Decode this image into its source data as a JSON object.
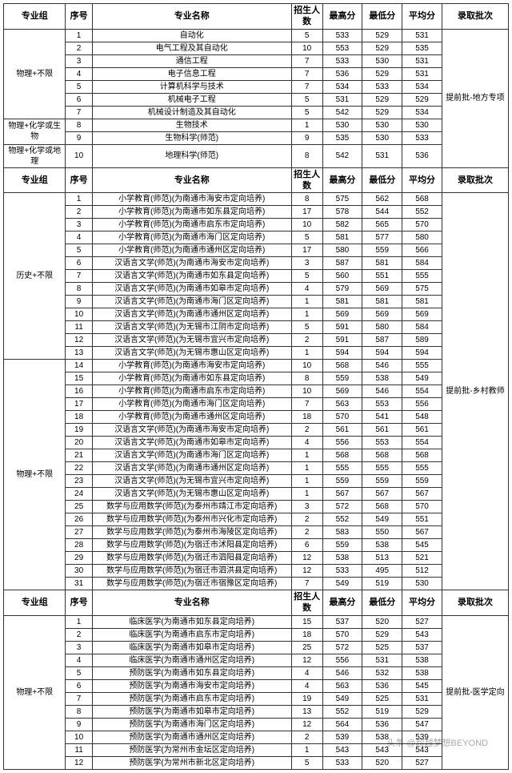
{
  "columns": {
    "group": "专业组",
    "idx": "序号",
    "name": "专业名称",
    "count": "招生人数",
    "max": "最高分",
    "min": "最低分",
    "avg": "平均分",
    "batch": "录取批次"
  },
  "watermark": "头条 @超越梦想BEYOND",
  "sections": [
    {
      "batch": "提前批-地方专项",
      "groups": [
        {
          "group": "物理+不限",
          "rows": [
            {
              "i": 1,
              "n": "自动化",
              "c": 5,
              "max": 533,
              "min": 529,
              "avg": 531
            },
            {
              "i": 2,
              "n": "电气工程及其自动化",
              "c": 10,
              "max": 553,
              "min": 529,
              "avg": 535
            },
            {
              "i": 3,
              "n": "通信工程",
              "c": 7,
              "max": 533,
              "min": 530,
              "avg": 531
            },
            {
              "i": 4,
              "n": "电子信息工程",
              "c": 7,
              "max": 536,
              "min": 529,
              "avg": 531
            },
            {
              "i": 5,
              "n": "计算机科学与技术",
              "c": 7,
              "max": 534,
              "min": 533,
              "avg": 534
            },
            {
              "i": 6,
              "n": "机械电子工程",
              "c": 5,
              "max": 531,
              "min": 529,
              "avg": 529
            },
            {
              "i": 7,
              "n": "机械设计制造及其自动化",
              "c": 5,
              "max": 542,
              "min": 529,
              "avg": 534
            }
          ]
        },
        {
          "group": "物理+化学或生物",
          "rows": [
            {
              "i": 8,
              "n": "生物技术",
              "c": 1,
              "max": 530,
              "min": 530,
              "avg": 530
            },
            {
              "i": 9,
              "n": "生物科学(师范)",
              "c": 9,
              "max": 535,
              "min": 530,
              "avg": 533
            }
          ]
        },
        {
          "group": "物理+化学或地理",
          "rows": [
            {
              "i": 10,
              "n": "地理科学(师范)",
              "c": 8,
              "max": 542,
              "min": 531,
              "avg": 536
            }
          ]
        }
      ]
    },
    {
      "batch": "提前批-乡村教师",
      "groups": [
        {
          "group": "历史+不限",
          "rows": [
            {
              "i": 1,
              "n": "小学教育(师范)(为南通市海安市定向培养)",
              "c": 8,
              "max": 575,
              "min": 562,
              "avg": 568
            },
            {
              "i": 2,
              "n": "小学教育(师范)(为南通市如东县定向培养)",
              "c": 17,
              "max": 578,
              "min": 544,
              "avg": 552
            },
            {
              "i": 3,
              "n": "小学教育(师范)(为南通市启东市定向培养)",
              "c": 10,
              "max": 582,
              "min": 565,
              "avg": 570
            },
            {
              "i": 4,
              "n": "小学教育(师范)(为南通市海门区定向培养)",
              "c": 5,
              "max": 581,
              "min": 577,
              "avg": 580
            },
            {
              "i": 5,
              "n": "小学教育(师范)(为南通市通州区定向培养)",
              "c": 17,
              "max": 580,
              "min": 559,
              "avg": 566
            },
            {
              "i": 6,
              "n": "汉语言文学(师范)(为南通市海安市定向培养)",
              "c": 3,
              "max": 587,
              "min": 581,
              "avg": 584
            },
            {
              "i": 7,
              "n": "汉语言文学(师范)(为南通市如东县定向培养)",
              "c": 5,
              "max": 560,
              "min": 551,
              "avg": 555
            },
            {
              "i": 8,
              "n": "汉语言文学(师范)(为南通市如皋市定向培养)",
              "c": 4,
              "max": 579,
              "min": 569,
              "avg": 575
            },
            {
              "i": 9,
              "n": "汉语言文学(师范)(为南通市海门区定向培养)",
              "c": 1,
              "max": 581,
              "min": 581,
              "avg": 581
            },
            {
              "i": 10,
              "n": "汉语言文学(师范)(为南通市通州区定向培养)",
              "c": 1,
              "max": 569,
              "min": 569,
              "avg": 569
            },
            {
              "i": 11,
              "n": "汉语言文学(师范)(为无锡市江阴市定向培养)",
              "c": 5,
              "max": 591,
              "min": 580,
              "avg": 584
            },
            {
              "i": 12,
              "n": "汉语言文学(师范)(为无锡市宜兴市定向培养)",
              "c": 2,
              "max": 591,
              "min": 587,
              "avg": 589
            },
            {
              "i": 13,
              "n": "汉语言文学(师范)(为无锡市惠山区定向培养)",
              "c": 1,
              "max": 594,
              "min": 594,
              "avg": 594
            }
          ]
        },
        {
          "group": "物理+不限",
          "rows": [
            {
              "i": 14,
              "n": "小学教育(师范)(为南通市海安市定向培养)",
              "c": 10,
              "max": 568,
              "min": 546,
              "avg": 555
            },
            {
              "i": 15,
              "n": "小学教育(师范)(为南通市如东县定向培养)",
              "c": 8,
              "max": 559,
              "min": 538,
              "avg": 549
            },
            {
              "i": 16,
              "n": "小学教育(师范)(为南通市启东市定向培养)",
              "c": 10,
              "max": 569,
              "min": 546,
              "avg": 554
            },
            {
              "i": 17,
              "n": "小学教育(师范)(为南通市海门区定向培养)",
              "c": 7,
              "max": 563,
              "min": 553,
              "avg": 556
            },
            {
              "i": 18,
              "n": "小学教育(师范)(为南通市通州区定向培养)",
              "c": 18,
              "max": 570,
              "min": 541,
              "avg": 548
            },
            {
              "i": 19,
              "n": "汉语言文学(师范)(为南通市海安市定向培养)",
              "c": 2,
              "max": 561,
              "min": 561,
              "avg": 561
            },
            {
              "i": 20,
              "n": "汉语言文学(师范)(为南通市如皋市定向培养)",
              "c": 4,
              "max": 556,
              "min": 553,
              "avg": 554
            },
            {
              "i": 21,
              "n": "汉语言文学(师范)(为南通市海门区定向培养)",
              "c": 1,
              "max": 568,
              "min": 568,
              "avg": 568
            },
            {
              "i": 22,
              "n": "汉语言文学(师范)(为南通市通州区定向培养)",
              "c": 1,
              "max": 555,
              "min": 555,
              "avg": 555
            },
            {
              "i": 23,
              "n": "汉语言文学(师范)(为无锡市宜兴市定向培养)",
              "c": 1,
              "max": 559,
              "min": 559,
              "avg": 559
            },
            {
              "i": 24,
              "n": "汉语言文学(师范)(为无锡市惠山区定向培养)",
              "c": 1,
              "max": 567,
              "min": 567,
              "avg": 567
            },
            {
              "i": 25,
              "n": "数学与应用数学(师范)(为泰州市靖江市定向培养)",
              "c": 3,
              "max": 572,
              "min": 568,
              "avg": 570
            },
            {
              "i": 26,
              "n": "数学与应用数学(师范)(为泰州市兴化市定向培养)",
              "c": 2,
              "max": 552,
              "min": 549,
              "avg": 551
            },
            {
              "i": 27,
              "n": "数学与应用数学(师范)(为泰州市海陵区定向培养)",
              "c": 2,
              "max": 583,
              "min": 550,
              "avg": 567
            },
            {
              "i": 28,
              "n": "数学与应用数学(师范)(为宿迁市沭阳县定向培养)",
              "c": 6,
              "max": 559,
              "min": 538,
              "avg": 545
            },
            {
              "i": 29,
              "n": "数学与应用数学(师范)(为宿迁市泗阳县定向培养)",
              "c": 12,
              "max": 538,
              "min": 513,
              "avg": 521
            },
            {
              "i": 30,
              "n": "数学与应用数学(师范)(为宿迁市泗洪县定向培养)",
              "c": 12,
              "max": 533,
              "min": 495,
              "avg": 512
            },
            {
              "i": 31,
              "n": "数学与应用数学(师范)(为宿迁市宿豫区定向培养)",
              "c": 7,
              "max": 549,
              "min": 519,
              "avg": 530
            }
          ]
        }
      ]
    },
    {
      "batch": "提前批-医学定向",
      "groups": [
        {
          "group": "物理+不限",
          "rows": [
            {
              "i": 1,
              "n": "临床医学(为南通市如东县定向培养)",
              "c": 15,
              "max": 537,
              "min": 520,
              "avg": 527
            },
            {
              "i": 2,
              "n": "临床医学(为南通市启东市定向培养)",
              "c": 18,
              "max": 570,
              "min": 529,
              "avg": 543
            },
            {
              "i": 3,
              "n": "临床医学(为南通市如皋市定向培养)",
              "c": 25,
              "max": 572,
              "min": 525,
              "avg": 537
            },
            {
              "i": 4,
              "n": "临床医学(为南通市通州区定向培养)",
              "c": 12,
              "max": 556,
              "min": 531,
              "avg": 538
            },
            {
              "i": 5,
              "n": "预防医学(为南通市如东县定向培养)",
              "c": 4,
              "max": 546,
              "min": 532,
              "avg": 538
            },
            {
              "i": 6,
              "n": "预防医学(为南通市海安市定向培养)",
              "c": 4,
              "max": 563,
              "min": 536,
              "avg": 545
            },
            {
              "i": 7,
              "n": "预防医学(为南通市启东市定向培养)",
              "c": 19,
              "max": 549,
              "min": 525,
              "avg": 531
            },
            {
              "i": 8,
              "n": "预防医学(为南通市如皋市定向培养)",
              "c": 13,
              "max": 552,
              "min": 519,
              "avg": 529
            },
            {
              "i": 9,
              "n": "预防医学(为南通市海门区定向培养)",
              "c": 12,
              "max": 564,
              "min": 536,
              "avg": 547
            },
            {
              "i": 10,
              "n": "预防医学(为南通市通州区定向培养)",
              "c": 2,
              "max": 539,
              "min": 538,
              "avg": 539
            },
            {
              "i": 11,
              "n": "预防医学(为常州市金坛区定向培养)",
              "c": 1,
              "max": 543,
              "min": 543,
              "avg": 543
            },
            {
              "i": 12,
              "n": "预防医学(为常州市新北区定向培养)",
              "c": 5,
              "max": 533,
              "min": 520,
              "avg": 527
            }
          ]
        }
      ]
    }
  ]
}
